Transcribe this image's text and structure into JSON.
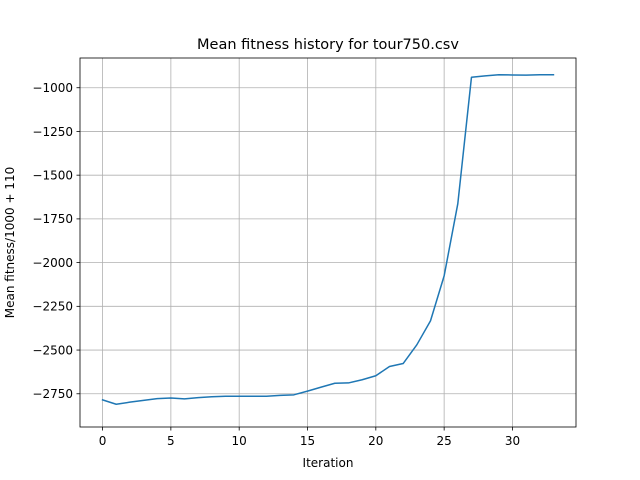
{
  "chart_data": {
    "type": "line",
    "title": "Mean fitness history for tour750.csv",
    "xlabel": "Iteration",
    "ylabel": "Mean fitness/1000 + 110",
    "xlim": [
      -1.65,
      34.65
    ],
    "ylim": [
      -2940,
      -830
    ],
    "xticks": [
      0,
      5,
      10,
      15,
      20,
      25,
      30
    ],
    "yticks": [
      -2750,
      -2500,
      -2250,
      -2000,
      -1750,
      -1500,
      -1250,
      -1000
    ],
    "xtick_labels": [
      "0",
      "5",
      "10",
      "15",
      "20",
      "25",
      "30"
    ],
    "ytick_labels": [
      "−2750",
      "−2500",
      "−2250",
      "−2000",
      "−1750",
      "−1500",
      "−1250",
      "−1000"
    ],
    "grid": true,
    "color": "#1f77b4",
    "series": [
      {
        "x": [
          0,
          1,
          2,
          3,
          4,
          5,
          6,
          7,
          8,
          9,
          10,
          11,
          12,
          13,
          14,
          15,
          16,
          17,
          18,
          19,
          20,
          21,
          22,
          23,
          24,
          25,
          26,
          27,
          28,
          29,
          30,
          31,
          32,
          33
        ],
        "y": [
          -2785,
          -2810,
          -2798,
          -2788,
          -2778,
          -2774,
          -2779,
          -2772,
          -2767,
          -2764,
          -2764,
          -2764,
          -2764,
          -2759,
          -2756,
          -2735,
          -2712,
          -2690,
          -2688,
          -2670,
          -2647,
          -2594,
          -2577,
          -2470,
          -2333,
          -2076,
          -1663,
          -940,
          -932,
          -926,
          -927,
          -928,
          -926,
          -926
        ]
      }
    ]
  }
}
